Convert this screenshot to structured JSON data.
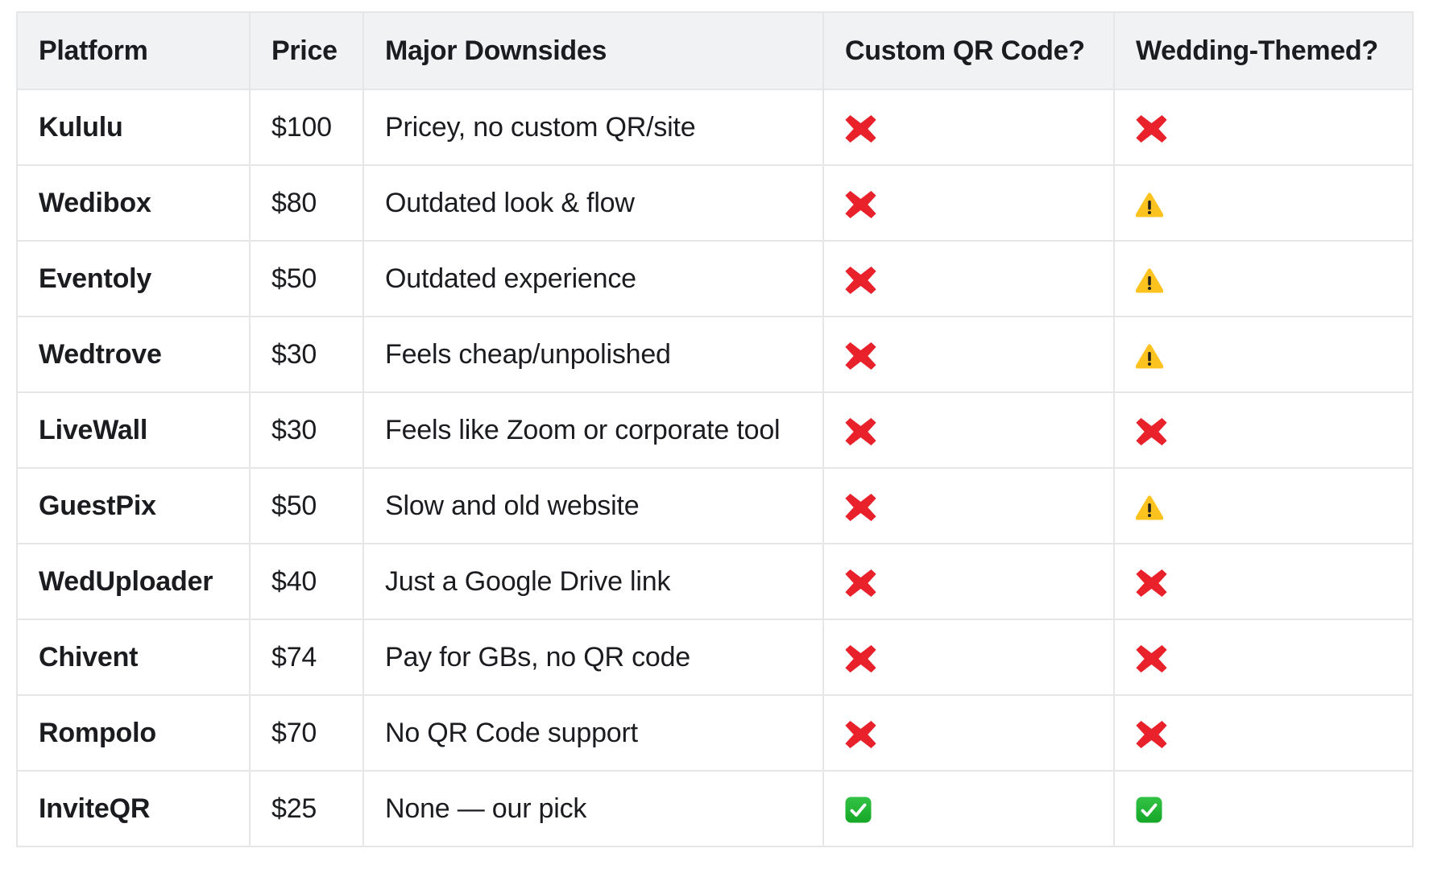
{
  "table": {
    "columns": [
      {
        "key": "platform",
        "label": "Platform"
      },
      {
        "key": "price",
        "label": "Price"
      },
      {
        "key": "downsides",
        "label": "Major Downsides"
      },
      {
        "key": "custom_qr",
        "label": "Custom QR Code?"
      },
      {
        "key": "wedding_themed",
        "label": "Wedding-Themed?"
      }
    ],
    "rows": [
      {
        "platform": "Kululu",
        "price": "$100",
        "downsides": "Pricey, no custom QR/site",
        "custom_qr": "cross",
        "wedding_themed": "cross"
      },
      {
        "platform": "Wedibox",
        "price": "$80",
        "downsides": "Outdated look & flow",
        "custom_qr": "cross",
        "wedding_themed": "warning"
      },
      {
        "platform": "Eventoly",
        "price": "$50",
        "downsides": "Outdated experience",
        "custom_qr": "cross",
        "wedding_themed": "warning"
      },
      {
        "platform": "Wedtrove",
        "price": "$30",
        "downsides": "Feels cheap/unpolished",
        "custom_qr": "cross",
        "wedding_themed": "warning"
      },
      {
        "platform": "LiveWall",
        "price": "$30",
        "downsides": "Feels like Zoom or corporate tool",
        "custom_qr": "cross",
        "wedding_themed": "cross"
      },
      {
        "platform": "GuestPix",
        "price": "$50",
        "downsides": "Slow and old website",
        "custom_qr": "cross",
        "wedding_themed": "warning"
      },
      {
        "platform": "WedUploader",
        "price": "$40",
        "downsides": "Just a Google Drive link",
        "custom_qr": "cross",
        "wedding_themed": "cross"
      },
      {
        "platform": "Chivent",
        "price": "$74",
        "downsides": "Pay for GBs, no QR code",
        "custom_qr": "cross",
        "wedding_themed": "cross"
      },
      {
        "platform": "Rompolo",
        "price": "$70",
        "downsides": "No QR Code support",
        "custom_qr": "cross",
        "wedding_themed": "cross"
      },
      {
        "platform": "InviteQR",
        "price": "$25",
        "downsides": "None — our pick",
        "custom_qr": "check",
        "wedding_themed": "check"
      }
    ],
    "icons": {
      "cross": {
        "meaning": "no",
        "color": "#e8212b"
      },
      "warning": {
        "meaning": "partial",
        "color": "#fcc21e"
      },
      "check": {
        "meaning": "yes",
        "color": "#22b43a"
      }
    },
    "colors": {
      "header_bg": "#f1f2f4",
      "border": "#e5e6e8",
      "text": "#1a1c20",
      "row_bg": "#ffffff"
    }
  }
}
